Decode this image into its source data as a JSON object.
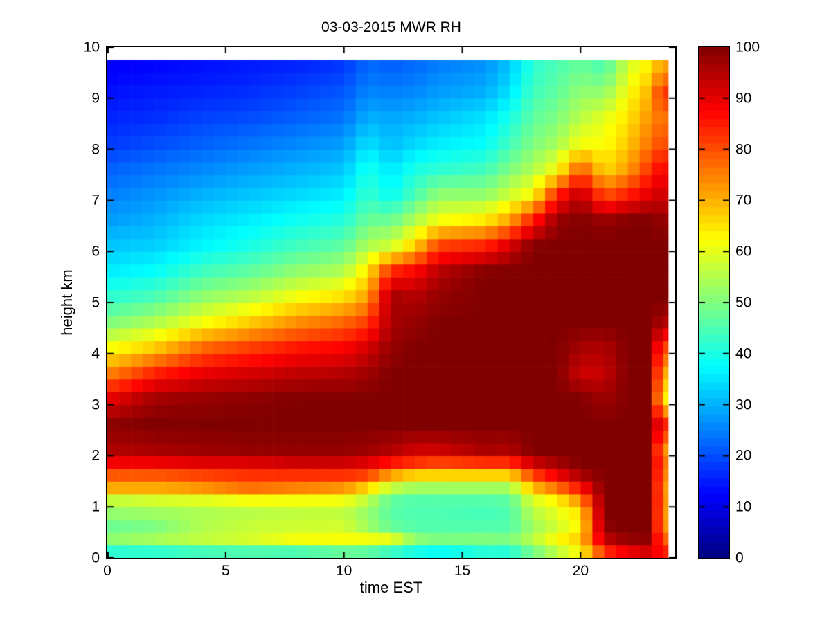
{
  "figure": {
    "title": "03-03-2015 MWR RH",
    "xlabel": "time EST",
    "ylabel": "height km",
    "background": "#ffffff",
    "frame_color": "#000000"
  },
  "chart_data": {
    "type": "heatmap",
    "title": "03-03-2015 MWR RH",
    "xlabel": "time EST",
    "ylabel": "height km",
    "xlim": [
      0,
      24
    ],
    "ylim": [
      0,
      10
    ],
    "x_ticks": [
      0,
      5,
      10,
      15,
      20
    ],
    "y_ticks": [
      0,
      1,
      2,
      3,
      4,
      5,
      6,
      7,
      8,
      9,
      10
    ],
    "grid_lines": "off",
    "colormap": "jet",
    "clim": [
      0,
      100
    ],
    "colorbar_ticks": [
      0,
      10,
      20,
      30,
      40,
      50,
      60,
      70,
      80,
      90,
      100
    ],
    "colorbar_position": "right",
    "colorbar_steps": 64,
    "grid": {
      "comment": "RH (%) control grid; rows = time_nodes (hours EST), cols = height_nodes (km, ascending). Rendered as flat 0.5 h x 0.25 km cells via bilinear interpolation.",
      "data_t_range": [
        0,
        23.7
      ],
      "data_h_range": [
        0,
        9.75
      ],
      "cell_dt": 0.5,
      "cell_dh": 0.25,
      "time_nodes": [
        0,
        2,
        4,
        6,
        8,
        10,
        11,
        12,
        13,
        14,
        16,
        17,
        18,
        19,
        20,
        21,
        22,
        23.1,
        23.35
      ],
      "height_nodes": [
        0.1,
        0.3,
        0.5,
        0.7,
        0.9,
        1.1,
        1.35,
        1.6,
        1.85,
        2.1,
        2.6,
        3.1,
        3.6,
        4.1,
        4.6,
        5.1,
        5.6,
        6.1,
        6.6,
        7.1,
        7.6,
        8.1,
        8.6,
        9.1,
        9.6
      ],
      "rh_values": [
        [
          40,
          55,
          45,
          50,
          52,
          55,
          70,
          78,
          88,
          95,
          99,
          90,
          75,
          62,
          50,
          42,
          36,
          32,
          28,
          25,
          22,
          18,
          16,
          14,
          12
        ],
        [
          40,
          58,
          46,
          52,
          53,
          57,
          70,
          78,
          88,
          96,
          100,
          97,
          85,
          68,
          55,
          45,
          38,
          33,
          30,
          27,
          24,
          20,
          17,
          15,
          13
        ],
        [
          42,
          60,
          50,
          58,
          54,
          58,
          72,
          80,
          90,
          97,
          100,
          98,
          90,
          78,
          62,
          52,
          44,
          37,
          34,
          30,
          26,
          22,
          19,
          16,
          14
        ],
        [
          43,
          62,
          52,
          60,
          55,
          60,
          76,
          82,
          90,
          98,
          100,
          99,
          92,
          82,
          68,
          56,
          47,
          40,
          36,
          32,
          28,
          24,
          20,
          17,
          15
        ],
        [
          42,
          66,
          54,
          60,
          56,
          60,
          74,
          82,
          92,
          98,
          100,
          100,
          94,
          86,
          74,
          62,
          52,
          44,
          39,
          34,
          30,
          26,
          22,
          19,
          16
        ],
        [
          45,
          66,
          55,
          60,
          56,
          60,
          72,
          82,
          92,
          98,
          100,
          100,
          95,
          88,
          78,
          66,
          55,
          47,
          41,
          36,
          32,
          28,
          24,
          21,
          18
        ],
        [
          44,
          68,
          50,
          55,
          52,
          55,
          65,
          80,
          90,
          97,
          100,
          100,
          97,
          92,
          82,
          72,
          65,
          55,
          48,
          43,
          40,
          35,
          30,
          26,
          23
        ],
        [
          40,
          68,
          47,
          48,
          46,
          46,
          55,
          70,
          85,
          95,
          100,
          100,
          100,
          98,
          96,
          97,
          85,
          58,
          48,
          38,
          35,
          31,
          29,
          25,
          22
        ],
        [
          38,
          55,
          45,
          46,
          45,
          45,
          52,
          65,
          82,
          92,
          100,
          100,
          100,
          100,
          98,
          95,
          88,
          68,
          55,
          45,
          40,
          34,
          30,
          26,
          23
        ],
        [
          36,
          52,
          45,
          46,
          45,
          45,
          52,
          65,
          80,
          92,
          100,
          100,
          100,
          100,
          100,
          98,
          95,
          82,
          62,
          52,
          42,
          36,
          32,
          28,
          25
        ],
        [
          40,
          53,
          45,
          46,
          44,
          45,
          52,
          65,
          82,
          96,
          100,
          100,
          100,
          100,
          100,
          100,
          100,
          85,
          65,
          52,
          44,
          38,
          35,
          30,
          27
        ],
        [
          40,
          52,
          45,
          46,
          45,
          46,
          52,
          65,
          82,
          95,
          100,
          100,
          100,
          100,
          100,
          100,
          100,
          92,
          72,
          58,
          50,
          44,
          40,
          35,
          32
        ],
        [
          48,
          58,
          52,
          54,
          56,
          58,
          68,
          80,
          92,
          100,
          100,
          100,
          100,
          100,
          100,
          100,
          100,
          100,
          86,
          63,
          55,
          50,
          47,
          44,
          42
        ],
        [
          55,
          65,
          58,
          58,
          60,
          62,
          75,
          88,
          96,
          100,
          100,
          100,
          100,
          100,
          100,
          100,
          100,
          100,
          98,
          85,
          62,
          54,
          50,
          47,
          45
        ],
        [
          62,
          68,
          66,
          62,
          66,
          72,
          85,
          95,
          100,
          100,
          100,
          100,
          92,
          96,
          100,
          100,
          100,
          100,
          100,
          95,
          80,
          62,
          56,
          52,
          48
        ],
        [
          82,
          92,
          97,
          100,
          100,
          100,
          100,
          100,
          100,
          100,
          100,
          97,
          93,
          95,
          100,
          100,
          100,
          100,
          98,
          80,
          66,
          62,
          60,
          52,
          45
        ],
        [
          88,
          97,
          100,
          100,
          100,
          100,
          100,
          100,
          100,
          100,
          100,
          100,
          100,
          100,
          100,
          100,
          100,
          100,
          100,
          85,
          72,
          68,
          65,
          62,
          58
        ],
        [
          92,
          98,
          100,
          100,
          100,
          100,
          100,
          100,
          100,
          100,
          100,
          100,
          100,
          100,
          100,
          100,
          100,
          100,
          100,
          92,
          85,
          78,
          75,
          72,
          66
        ],
        [
          85,
          80,
          74,
          72,
          72,
          73,
          72,
          74,
          76,
          72,
          85,
          63,
          70,
          80,
          95,
          100,
          100,
          100,
          98,
          92,
          87,
          80,
          76,
          83,
          72
        ]
      ]
    }
  }
}
